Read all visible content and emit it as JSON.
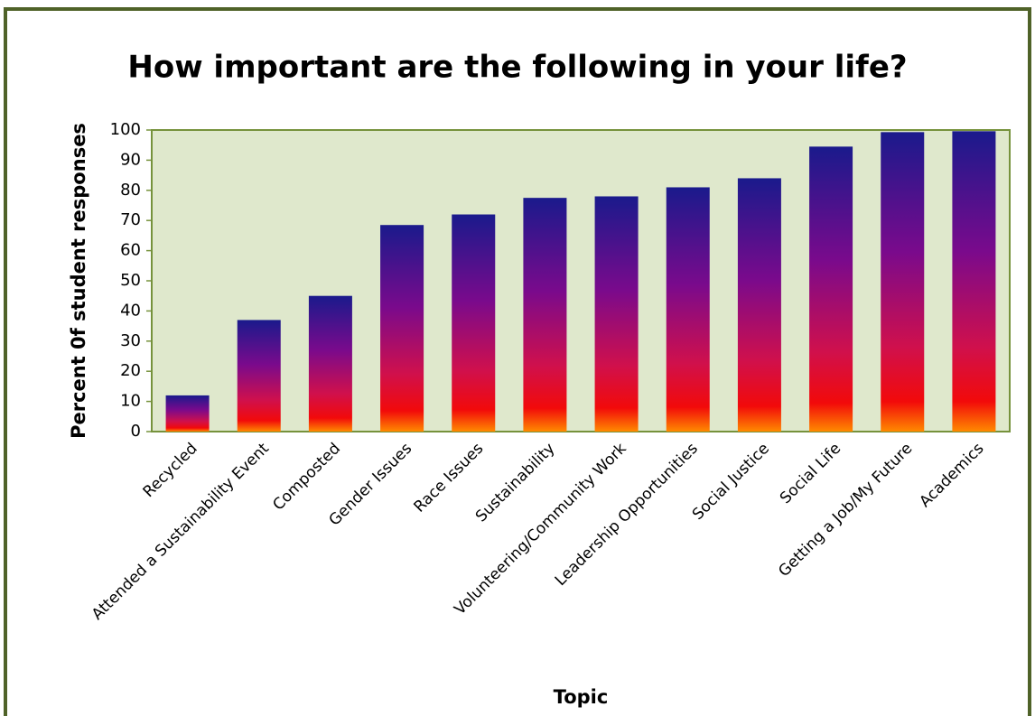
{
  "chart_data": {
    "type": "bar",
    "title": "How important are the following in your life?",
    "x_label": "Topic",
    "y_label": "Percent 0f student responses",
    "categories": [
      "Recycled",
      "Attended a Sustainability Event",
      "Composted",
      "Gender Issues",
      "Race Issues",
      "Sustainability",
      "Volunteering/Community Work",
      "Leadership Opportunities",
      "Social Justice",
      "Social Life",
      "Getting a Job/My Future",
      "Academics"
    ],
    "values": [
      12,
      37,
      45,
      68.5,
      72,
      77.5,
      78,
      81,
      84,
      94.5,
      99.3,
      99.6
    ],
    "gradient_colors": [
      "#1a1a8c",
      "#7a0a8c",
      "#d0104c",
      "#f20a0a",
      "#ff8a00"
    ],
    "ylim": [
      0,
      100
    ],
    "yticks": [
      0,
      10,
      20,
      30,
      40,
      50,
      60,
      70,
      80,
      90,
      100
    ],
    "grid": false
  }
}
